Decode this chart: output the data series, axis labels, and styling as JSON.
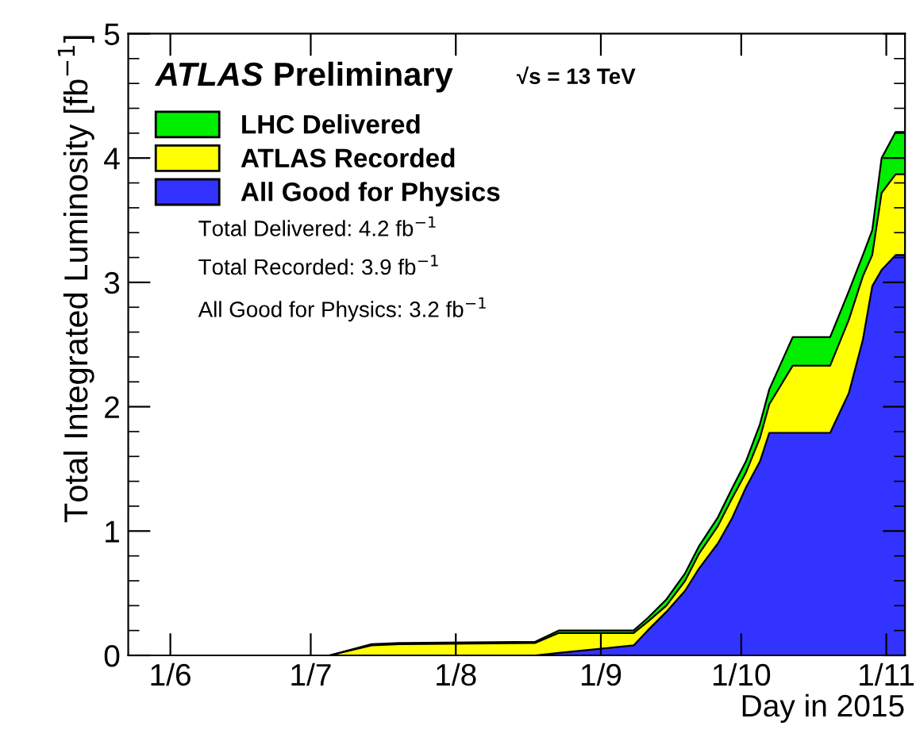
{
  "chart_data": {
    "type": "area",
    "title": "ATLAS Preliminary",
    "xlabel": "Day in 2015",
    "ylabel": "Total Integrated Luminosity [fb$^{−1}$]",
    "annotations": [
      "√s = 13 TeV",
      "Total Delivered: 4.2 fb$^{−1}$",
      "Total Recorded: 3.9 fb$^{−1}$",
      "All Good for Physics: 3.2 fb$^{−1}$"
    ],
    "x": [
      "2015-05-23",
      "2015-07-05",
      "2015-07-14",
      "2015-07-20",
      "2015-08-18",
      "2015-08-23",
      "2015-09-08",
      "2015-09-11",
      "2015-09-15",
      "2015-09-19",
      "2015-09-22",
      "2015-09-26",
      "2015-09-29",
      "2015-10-02",
      "2015-10-05",
      "2015-10-07",
      "2015-10-12",
      "2015-10-20",
      "2015-10-24",
      "2015-10-27",
      "2015-10-29",
      "2015-10-31",
      "2015-11-03",
      "2015-11-05"
    ],
    "series": [
      {
        "name": "LHC Delivered",
        "color": "#00ee00",
        "values": [
          0,
          0,
          0.09,
          0.1,
          0.11,
          0.2,
          0.2,
          0.3,
          0.45,
          0.66,
          0.88,
          1.11,
          1.34,
          1.56,
          1.86,
          2.14,
          2.56,
          2.56,
          2.93,
          3.22,
          3.42,
          4.0,
          4.21,
          4.21
        ]
      },
      {
        "name": "ATLAS Recorded",
        "color": "#ffff00",
        "values": [
          0,
          0,
          0.08,
          0.09,
          0.1,
          0.18,
          0.18,
          0.27,
          0.4,
          0.6,
          0.82,
          1.04,
          1.26,
          1.47,
          1.75,
          2.02,
          2.33,
          2.33,
          2.7,
          3.05,
          3.22,
          3.72,
          3.87,
          3.87
        ]
      },
      {
        "name": "All Good for Physics",
        "color": "#3333ff",
        "values": [
          0,
          0,
          0,
          0,
          0,
          0.02,
          0.08,
          0.2,
          0.35,
          0.52,
          0.7,
          0.9,
          1.1,
          1.35,
          1.56,
          1.79,
          1.79,
          1.79,
          2.11,
          2.54,
          2.97,
          3.1,
          3.22,
          3.22
        ]
      }
    ],
    "xlim": [
      "2015-05-23",
      "2015-11-05"
    ],
    "xticks": [
      {
        "value": "2015-06-01",
        "label": "1/6"
      },
      {
        "value": "2015-07-01",
        "label": "1/7"
      },
      {
        "value": "2015-08-01",
        "label": "1/8"
      },
      {
        "value": "2015-09-01",
        "label": "1/9"
      },
      {
        "value": "2015-10-01",
        "label": "1/10"
      },
      {
        "value": "2015-11-01",
        "label": "1/11"
      }
    ],
    "ylim": [
      0,
      5
    ],
    "yticks": [
      0,
      1,
      2,
      3,
      4,
      5
    ],
    "grid": false,
    "legend": "top left"
  }
}
